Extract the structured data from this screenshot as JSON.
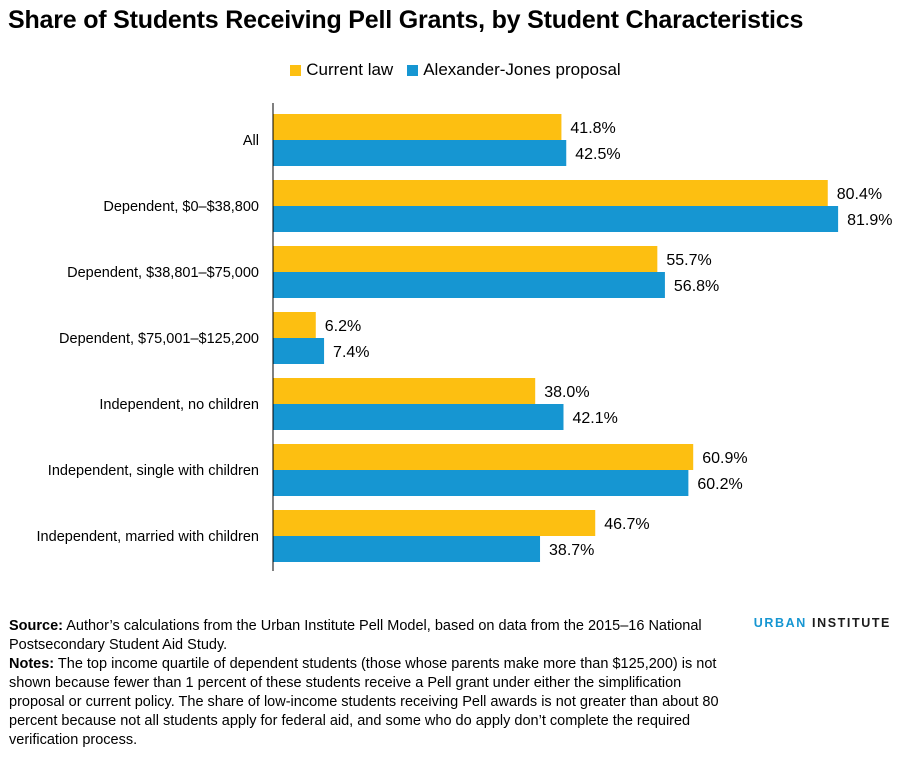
{
  "title": "Share of Students Receiving Pell Grants, by Student Characteristics",
  "colors": {
    "current": "#fdbf11",
    "proposal": "#1696d2",
    "axis": "#000000",
    "text": "#000000"
  },
  "chart_data": {
    "type": "bar",
    "orientation": "horizontal",
    "title": "Share of Students Receiving Pell Grants, by Student Characteristics",
    "categories": [
      "All",
      "Dependent, $0–$38,800",
      "Dependent, $38,801–$75,000",
      "Dependent, $75,001–$125,200",
      "Independent, no children",
      "Independent, single with children",
      "Independent, married with children"
    ],
    "series": [
      {
        "name": "Current law",
        "color": "#fdbf11",
        "values": [
          41.8,
          80.4,
          55.7,
          6.2,
          38.0,
          60.9,
          46.7
        ],
        "labels": [
          "41.8%",
          "80.4%",
          "55.7%",
          "6.2%",
          "38.0%",
          "60.9%",
          "46.7%"
        ]
      },
      {
        "name": "Alexander-Jones proposal",
        "color": "#1696d2",
        "values": [
          42.5,
          81.9,
          56.8,
          7.4,
          42.1,
          60.2,
          38.7
        ],
        "labels": [
          "42.5%",
          "81.9%",
          "56.8%",
          "7.4%",
          "42.1%",
          "60.2%",
          "38.7%"
        ]
      }
    ],
    "xlim": [
      0,
      100
    ],
    "unit": "%",
    "grid": false,
    "legend_position": "top-center",
    "xlabel": "",
    "ylabel": ""
  },
  "footer": {
    "source_label": "Source:",
    "source_text": " Author’s calculations from the Urban Institute Pell Model, based on data from the 2015–16 National Postsecondary Student Aid Study.",
    "notes_label": "Notes:",
    "notes_text": " The top income quartile of dependent students (those whose parents make more than $125,200) is not shown because fewer than 1 percent of these students receive a Pell grant under either the simplification proposal or current policy. The share of low-income students receiving Pell awards is not greater than about 80 percent because not all students apply for federal aid, and some who do apply don’t complete the required verification process."
  },
  "logo": {
    "part1": "URBAN",
    "part2": " INSTITUTE"
  }
}
